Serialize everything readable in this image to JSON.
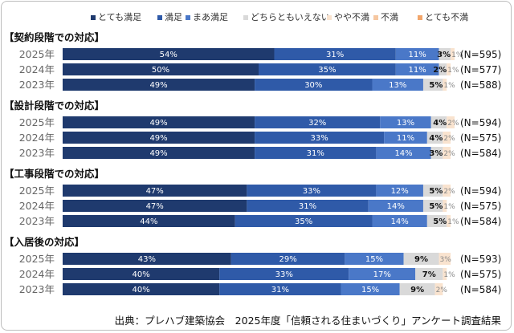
{
  "chart_data": {
    "type": "bar",
    "orientation": "horizontal",
    "stacked": true,
    "xlim": [
      0,
      100
    ],
    "value_format": "{v}%",
    "legend": [
      {
        "name": "とても満足",
        "color": "#1f3a6e"
      },
      {
        "name": "満足",
        "color": "#2f5aa8"
      },
      {
        "name": "まあ満足",
        "color": "#4a78c8"
      },
      {
        "name": "どちらともいえない",
        "color": "#d9d9d9"
      },
      {
        "name": "やや不満",
        "color": "#f9e3cf"
      },
      {
        "name": "不満",
        "color": "#f6c7a0"
      },
      {
        "name": "とても不満",
        "color": "#f2a66b"
      }
    ],
    "groups": [
      {
        "title": "【契約段階での対応】",
        "rows": [
          {
            "year": "2025年",
            "values": [
              54,
              31,
              11,
              3,
              1,
              0,
              0
            ],
            "n": "(N=595)"
          },
          {
            "year": "2024年",
            "values": [
              50,
              35,
              11,
              2,
              1,
              0,
              0
            ],
            "n": "(N=577)"
          },
          {
            "year": "2023年",
            "values": [
              49,
              30,
              13,
              5,
              1,
              0,
              0
            ],
            "n": "(N=588)"
          }
        ]
      },
      {
        "title": "【設計段階での対応】",
        "rows": [
          {
            "year": "2025年",
            "values": [
              49,
              32,
              13,
              4,
              2,
              0,
              0
            ],
            "n": "(N=594)"
          },
          {
            "year": "2024年",
            "values": [
              49,
              33,
              11,
              4,
              2,
              0,
              0
            ],
            "n": "(N=575)"
          },
          {
            "year": "2023年",
            "values": [
              49,
              31,
              14,
              3,
              2,
              0,
              0
            ],
            "n": "(N=584)"
          }
        ]
      },
      {
        "title": "【工事段階での対応】",
        "rows": [
          {
            "year": "2025年",
            "values": [
              47,
              33,
              12,
              5,
              2,
              0,
              0
            ],
            "n": "(N=594)"
          },
          {
            "year": "2024年",
            "values": [
              47,
              31,
              14,
              5,
              1,
              0,
              0
            ],
            "n": "(N=575)"
          },
          {
            "year": "2023年",
            "values": [
              44,
              35,
              14,
              5,
              1,
              0,
              0
            ],
            "n": "(N=584)"
          }
        ]
      },
      {
        "title": "【入居後の対応】",
        "rows": [
          {
            "year": "2025年",
            "values": [
              43,
              29,
              15,
              9,
              3,
              0,
              0
            ],
            "n": "(N=593)"
          },
          {
            "year": "2024年",
            "values": [
              40,
              33,
              17,
              7,
              1,
              0,
              0
            ],
            "n": "(N=575)"
          },
          {
            "year": "2023年",
            "values": [
              40,
              31,
              15,
              9,
              2,
              0,
              0
            ],
            "n": "(N=584)"
          }
        ]
      }
    ]
  },
  "source": "出典：プレハブ建築協会　2025年度「信頼される住まいづくり」アンケート調査結果"
}
